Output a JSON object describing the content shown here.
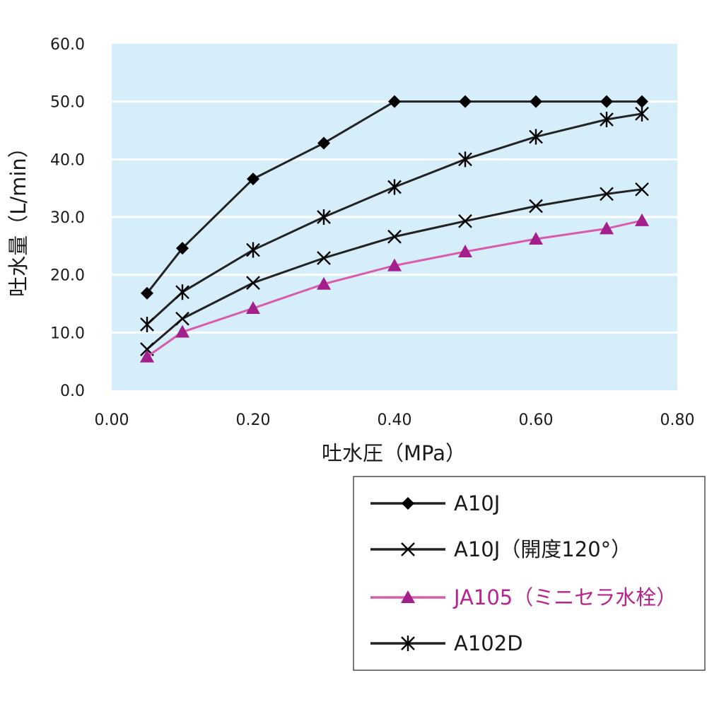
{
  "chart_data": {
    "type": "line",
    "xlabel": "吐水圧（MPa）",
    "ylabel": "吐水量（L/min）",
    "xlim": [
      0,
      0.8
    ],
    "ylim": [
      0,
      60
    ],
    "x_ticks": [
      "0.00",
      "0.20",
      "0.40",
      "0.60",
      "0.80"
    ],
    "y_ticks": [
      "0.0",
      "10.0",
      "20.0",
      "30.0",
      "40.0",
      "50.0",
      "60.0"
    ],
    "grid": "horizontal",
    "plot_background": "#d6eefa",
    "legend_position": "bottom-right",
    "series": [
      {
        "name": "A10J",
        "marker": "diamond",
        "color": "#222222",
        "marker_color": "#000000",
        "x": [
          0.05,
          0.1,
          0.2,
          0.3,
          0.4,
          0.5,
          0.6,
          0.7,
          0.75
        ],
        "y": [
          16.8,
          24.6,
          36.6,
          42.8,
          50.0,
          50.0,
          50.0,
          50.0,
          50.0
        ]
      },
      {
        "name": "A10J（開度120°）",
        "marker": "x",
        "color": "#222222",
        "marker_color": "#000000",
        "x": [
          0.05,
          0.1,
          0.2,
          0.3,
          0.4,
          0.5,
          0.6,
          0.7,
          0.75
        ],
        "y": [
          7.1,
          12.4,
          18.6,
          22.9,
          26.6,
          29.3,
          31.9,
          34.0,
          34.8
        ]
      },
      {
        "name": "JA105（ミニセラ水栓）",
        "marker": "triangle",
        "color": "#d95bad",
        "marker_color": "#a31f8c",
        "text_color": "#b8238f",
        "x": [
          0.05,
          0.1,
          0.2,
          0.3,
          0.4,
          0.5,
          0.6,
          0.7,
          0.75
        ],
        "y": [
          5.8,
          10.1,
          14.2,
          18.4,
          21.6,
          24.0,
          26.2,
          28.0,
          29.4
        ]
      },
      {
        "name": "A102D",
        "marker": "asterisk",
        "color": "#222222",
        "marker_color": "#000000",
        "x": [
          0.05,
          0.1,
          0.2,
          0.3,
          0.4,
          0.5,
          0.6,
          0.7,
          0.75
        ],
        "y": [
          11.4,
          17.0,
          24.3,
          30.0,
          35.2,
          40.0,
          43.9,
          46.9,
          47.9
        ]
      }
    ]
  }
}
